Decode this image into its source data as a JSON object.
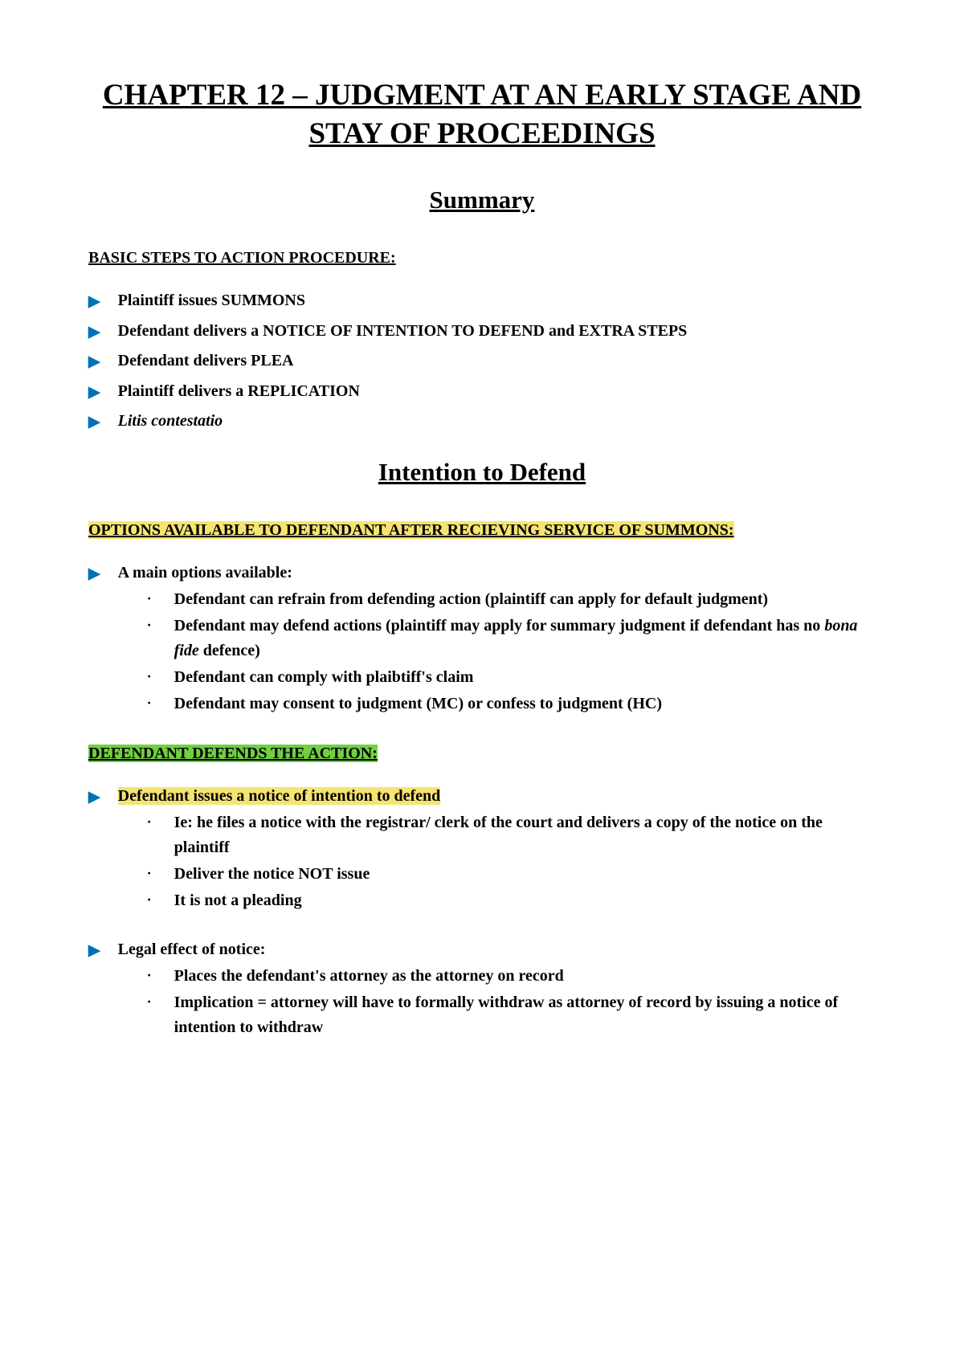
{
  "chapterTitle": "CHAPTER 12 – JUDGMENT AT AN EARLY STAGE AND STAY OF PROCEEDINGS",
  "summaryHeading": "Summary",
  "basicStepsHeader": "BASIC STEPS TO ACTION PROCEDURE:",
  "basicSteps": {
    "s1": "Plaintiff issues SUMMONS",
    "s2": "Defendant delivers a NOTICE OF INTENTION TO DEFEND and EXTRA STEPS",
    "s3": "Defendant delivers PLEA",
    "s4": "Plaintiff delivers a REPLICATION",
    "s5": "Litis contestatio"
  },
  "intentionHeading": "Intention to Defend",
  "optionsHeader": "OPTIONS AVAILABLE TO DEFENDANT AFTER RECIEVING SERVICE OF SUMMONS:",
  "mainOptionsLabel": "A main options available:",
  "mainOptions": {
    "o1": "Defendant can refrain from defending action (plaintiff can apply for default judgment)",
    "o2a": "Defendant may defend actions (plaintiff may apply for summary judgment if defendant has no ",
    "o2b": "bona fide",
    "o2c": " defence)",
    "o3": "Defendant can comply with plaibtiff's claim",
    "o4": "Defendant may consent to judgment (MC) or confess to judgment (HC)"
  },
  "defendsHeader": "DEFENDANT DEFENDS THE ACTION:",
  "noticeItem": "Defendant issues a notice of intention to defend",
  "noticeSubs": {
    "n1": "Ie: he files a notice with the registrar/ clerk of the court and delivers a copy of the notice on the plaintiff",
    "n2": "Deliver the notice NOT issue",
    "n3": "It is not a pleading"
  },
  "legalEffectLabel": "Legal effect of notice:",
  "legalSubs": {
    "l1": "Places the defendant's attorney as the attorney on record",
    "l2": "Implication = attorney will have to formally withdraw as attorney of record by issuing a notice of intention to withdraw"
  },
  "colors": {
    "arrowColor": "#0070b8",
    "yellowHighlight": "#f5e472",
    "greenHighlight": "#70d040",
    "background": "#ffffff",
    "text": "#000000"
  },
  "typography": {
    "chapterTitleSize": 37,
    "sectionTitleSize": 31,
    "bodySize": 20,
    "fontFamily": "Book Antiqua"
  }
}
